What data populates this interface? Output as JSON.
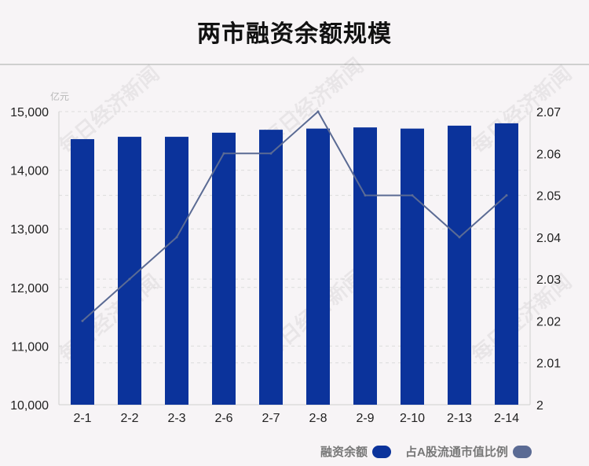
{
  "title": "两市融资余额规模",
  "unit_label": "亿元",
  "watermark_text": "每日经济新闻",
  "legend": {
    "bar_label": "融资余额",
    "line_label": "占A股流通市值比例"
  },
  "colors": {
    "bar": "#0b339b",
    "line": "#5b6b94",
    "grid": "#dcdcdc"
  },
  "chart_data": {
    "type": "bar",
    "categories": [
      "2-1",
      "2-2",
      "2-3",
      "2-6",
      "2-7",
      "2-8",
      "2-9",
      "2-10",
      "2-13",
      "2-14"
    ],
    "series": [
      {
        "name": "融资余额",
        "type": "bar",
        "axis": "left",
        "values": [
          14530,
          14570,
          14570,
          14640,
          14690,
          14710,
          14730,
          14710,
          14760,
          14800
        ]
      },
      {
        "name": "占A股流通市值比例",
        "type": "line",
        "axis": "right",
        "values": [
          2.02,
          2.03,
          2.04,
          2.06,
          2.06,
          2.07,
          2.05,
          2.05,
          2.04,
          2.05
        ]
      }
    ],
    "ylim_left": [
      10000,
      15000
    ],
    "yticks_left": [
      "10,000",
      "11,000",
      "12,000",
      "13,000",
      "14,000",
      "15,000"
    ],
    "ylim_right": [
      2,
      2.07
    ],
    "yticks_right": [
      "2",
      "2.01",
      "2.02",
      "2.03",
      "2.04",
      "2.05",
      "2.06",
      "2.07"
    ],
    "grid": true,
    "legend_position": "bottom-right"
  }
}
